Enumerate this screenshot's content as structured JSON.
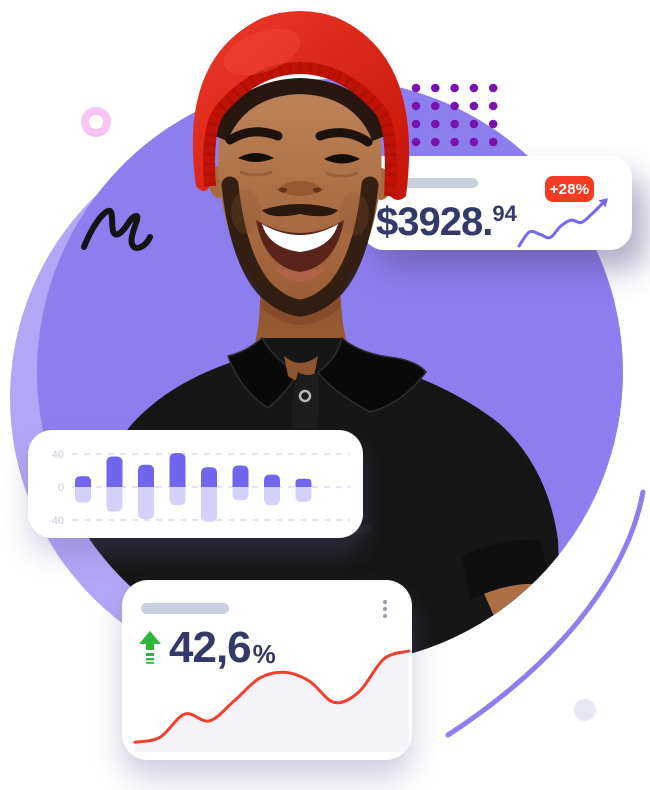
{
  "figures": {
    "revenue": {
      "value_main": "$3928.",
      "value_sup": "94",
      "badge": "+28%",
      "badge_color": "#f53b21",
      "number_color": "#333968"
    },
    "growth": {
      "value": "42,6",
      "percent_sign": "%",
      "arrow_color": "#2fb43c",
      "number_color": "#333968"
    }
  },
  "decor": {
    "background": "#ffffff",
    "main_circle_color": "#8d7ef0",
    "light_circle_color": "#b2a6f6",
    "dots_grid": {
      "rows": 4,
      "cols": 5,
      "color": "#7a12ad"
    },
    "arc_color": "#8d7ef0",
    "lavender_dot_color": "#e8e7f4",
    "pink_ring_color": "#f7c4f3",
    "squiggle_color": "#141414",
    "skeleton_pill_color": "#c9d0dd",
    "kebab_dots_color": "#949ba8"
  },
  "chart_data": [
    {
      "id": "revenue-trend",
      "type": "line",
      "title": "",
      "annotation": "+28%",
      "value_label": "$3928.94",
      "values": [
        0,
        30,
        25,
        18,
        42,
        55,
        50,
        68,
        90
      ],
      "line_color": "#7568ee",
      "axes": false,
      "legend": false
    },
    {
      "id": "volatility-bars",
      "type": "bar",
      "categories": [
        "",
        "",
        "",
        "",
        "",
        "",
        "",
        ""
      ],
      "series": [
        {
          "name": "positive",
          "values": [
            13,
            37,
            27,
            41,
            24,
            26,
            15,
            10
          ]
        },
        {
          "name": "negative",
          "values": [
            -19,
            -30,
            -39,
            -22,
            -42,
            -16,
            -22,
            -18
          ]
        }
      ],
      "yticks": [
        40,
        0,
        -40
      ],
      "ylim": [
        -50,
        50
      ],
      "grid": "dashed",
      "bar_color_positive": "#7165ee",
      "bar_color_negative": "#d3d0f9",
      "tick_color": "#c6cbd6",
      "grid_color": "#e5e3f3",
      "legend": false
    },
    {
      "id": "growth-line",
      "type": "area",
      "value_label": "42,6%",
      "values": [
        6,
        11,
        35,
        28,
        49,
        72,
        78,
        69,
        47,
        58,
        92,
        100
      ],
      "line_color": "#f3402e",
      "area_color": "#f3f3f8",
      "axes": false,
      "legend": false
    }
  ]
}
